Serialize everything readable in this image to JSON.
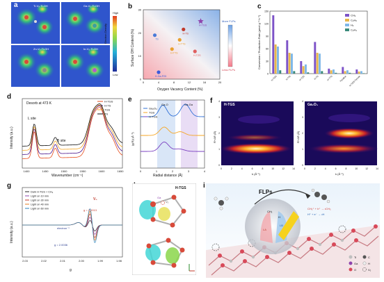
{
  "panels": {
    "a": {
      "letter": "a",
      "tiles": [
        "Ti-V₀-Ti-OH",
        "Ga-V₀-Ti-OH",
        "Zn-V₀-Ti-OH",
        "In-V₀-Ti-OH"
      ],
      "colorbar": [
        "Electron Density",
        "Low",
        "High"
      ]
    },
    "b": {
      "letter": "b",
      "xlabel": "Oxygen Vacancy Content (%)",
      "ylabel": "Surface OH Content (%)",
      "xticks": [
        "0",
        "4",
        "8",
        "12",
        "16",
        "20"
      ],
      "yticks": [
        "0",
        "10",
        "20",
        "30"
      ],
      "points": [
        {
          "label": "TS",
          "x": 3,
          "y": 19,
          "color": "#4a7bd8"
        },
        {
          "label": "H-TTS",
          "x": 7.5,
          "y": 13,
          "color": "#e8a030"
        },
        {
          "label": "H-TS",
          "x": 10.5,
          "y": 21.5,
          "color": "#c0392b"
        },
        {
          "label": "H-TTS",
          "x": 9.5,
          "y": 17,
          "color": "#e8a030"
        },
        {
          "label": "H-TZS",
          "x": 13.5,
          "y": 12,
          "color": "#e06060"
        },
        {
          "label": "H-TGS",
          "x": 15,
          "y": 25,
          "color": "#8e44ad"
        },
        {
          "label": "H-Ga-P25",
          "x": 4,
          "y": 3,
          "color": "#3b5bdb"
        }
      ],
      "legend_top": "More FLPs",
      "legend_bottom": "Less FLPs"
    },
    "c": {
      "letter": "c",
      "ylabel": "Conversion / Production Rate (μmol g⁻¹ h⁻¹)",
      "legend": [
        "CH₄",
        "C₂H₆",
        "H₂",
        "C₂H₄"
      ],
      "colors": [
        "#7d53c8",
        "#e8b74a",
        "#7fb8e8",
        "#3a8a7a"
      ],
      "categories": [
        "H-TGS",
        "H-TIS",
        "H-TZS",
        "H-TS",
        "H-TTS",
        "Pyridine",
        "H-TGS Pyrrole"
      ],
      "yticks": [
        "0",
        "30",
        "60",
        "90",
        "120",
        "150"
      ]
    },
    "d": {
      "letter": "d",
      "title": "Desorb at 473 K",
      "xlabel": "Wavenumber (cm⁻¹)",
      "ylabel": "Intensity (a.u.)",
      "xticks": [
        "1400",
        "1450",
        "1500",
        "1550",
        "1600",
        "1650"
      ],
      "legend": [
        "H-TGS",
        "H-TS",
        "TGS",
        "TS"
      ],
      "colors": [
        "#e64a19",
        "#4a148c",
        "#f6a623",
        "#111111"
      ],
      "annotations": [
        "L site",
        "B site"
      ]
    },
    "e": {
      "letter": "e",
      "xlabel": "Radial distance (Å)",
      "ylabel": "|χ(R)| (Å⁻³)",
      "xticks": [
        "0",
        "1",
        "2",
        "3",
        "4"
      ],
      "legend": [
        "Ga₂O₃",
        "TGS",
        "H-TGS"
      ],
      "colors": [
        "#2f6fd6",
        "#f6a623",
        "#7a3fc0"
      ],
      "band_labels": [
        "Ga-O",
        "Ga-Ga"
      ]
    },
    "f": {
      "letter": "f",
      "left_title": "H-TGS",
      "right_title": "Ga₂O₃",
      "xlabel": "k (Å⁻¹)",
      "ylabel": "R+ΔR (Å)",
      "xticks": [
        "0",
        "2",
        "4",
        "6",
        "8",
        "10",
        "12",
        "14"
      ],
      "yticks": [
        "0",
        "1",
        "2",
        "3",
        "4"
      ]
    },
    "g": {
      "letter": "g",
      "xlabel": "g",
      "ylabel": "Intensity (a.u.)",
      "xticks": [
        "2.03",
        "2.02",
        "2.01",
        "2.00",
        "1.99",
        "1.98"
      ],
      "legend": [
        "Dark H-TGS + CH₄",
        "Light on 10 min",
        "Light on 30 min",
        "Light on 40 min",
        "Light on 60 min"
      ],
      "colors": [
        "#222222",
        "#8e44ad",
        "#c0392b",
        "#e67e22",
        "#2980b9"
      ],
      "annotations": {
        "vo": "V₀",
        "g1": "g = 2.0013",
        "electron": "electron⁻¹",
        "g2": "g = 2.0036"
      }
    },
    "h": {
      "letter": "h",
      "title": "H-TGS",
      "atoms": [
        "Ga",
        "V₀"
      ]
    },
    "i": {
      "letter": "i",
      "flps": "FLPs",
      "ch3": "CH₃",
      "h": "H",
      "la": "LA",
      "lb": "LB",
      "eq1": "CH₃⁺ + h⁺ → •CH₃",
      "eq2": "H⁺ + e⁻ → •H",
      "key": [
        "Ti",
        "C",
        "Ga",
        "H",
        "O",
        "V₀"
      ]
    }
  }
}
